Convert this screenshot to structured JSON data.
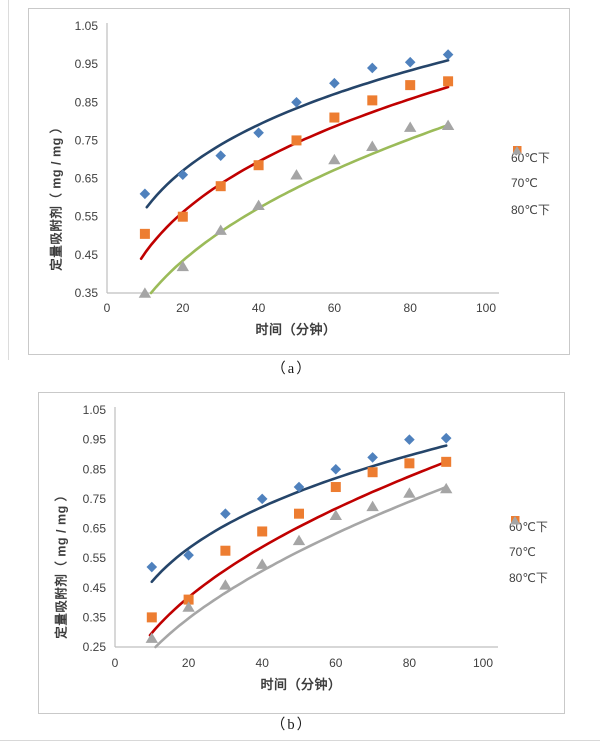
{
  "captions": {
    "a": "（a）",
    "b": "（b）"
  },
  "chart_data": [
    {
      "id": "a",
      "type": "scatter",
      "title": "",
      "xlabel": "时间（分钟）",
      "ylabel": "定量吸附剂（ mg / mg ）",
      "xlim": [
        0,
        100
      ],
      "ylim": [
        0.35,
        1.05
      ],
      "xticks": [
        0,
        20,
        40,
        60,
        80,
        100
      ],
      "yticks": [
        1.05,
        0.95,
        0.85,
        0.75,
        0.65,
        0.55,
        0.45,
        0.35
      ],
      "grid": false,
      "legend_position": "right",
      "x": [
        10,
        20,
        30,
        40,
        50,
        60,
        70,
        80,
        90
      ],
      "series": [
        {
          "name": "60℃下",
          "marker": "diamond",
          "marker_color": "#4f81bd",
          "line_color": "#25456a",
          "values": [
            0.61,
            0.66,
            0.71,
            0.77,
            0.85,
            0.9,
            0.94,
            0.955,
            0.975
          ],
          "trend": {
            "type": "power",
            "x1": 10.5,
            "y1": 0.575,
            "x2": 90,
            "y2": 0.96
          }
        },
        {
          "name": "70℃",
          "marker": "square",
          "marker_color": "#ed7d31",
          "line_color": "#c00000",
          "values": [
            0.505,
            0.55,
            0.63,
            0.685,
            0.75,
            0.81,
            0.855,
            0.895,
            0.905
          ],
          "trend": {
            "type": "power",
            "x1": 9,
            "y1": 0.44,
            "x2": 90,
            "y2": 0.89
          }
        },
        {
          "name": "80℃下",
          "marker": "triangle",
          "marker_color": "#a5a5a5",
          "line_color": "#9bbb59",
          "values": [
            0.35,
            0.42,
            0.515,
            0.58,
            0.66,
            0.7,
            0.735,
            0.785,
            0.79
          ],
          "trend": {
            "type": "power",
            "x1": 11.6,
            "y1": 0.35,
            "x2": 90,
            "y2": 0.79
          }
        }
      ]
    },
    {
      "id": "b",
      "type": "scatter",
      "title": "",
      "xlabel": "时间（分钟）",
      "ylabel": "定量吸附剂（ mg / mg ）",
      "xlim": [
        0,
        100
      ],
      "ylim": [
        0.25,
        1.05
      ],
      "xticks": [
        0,
        20,
        40,
        60,
        80,
        100
      ],
      "yticks": [
        1.05,
        0.95,
        0.85,
        0.75,
        0.65,
        0.55,
        0.45,
        0.35,
        0.25
      ],
      "grid": false,
      "legend_position": "right",
      "x": [
        10,
        20,
        30,
        40,
        50,
        60,
        70,
        80,
        90
      ],
      "series": [
        {
          "name": "60℃下",
          "marker": "diamond",
          "marker_color": "#4f81bd",
          "line_color": "#25456a",
          "values": [
            0.52,
            0.56,
            0.7,
            0.75,
            0.79,
            0.85,
            0.89,
            0.95,
            0.955
          ],
          "trend": {
            "type": "power",
            "x1": 10,
            "y1": 0.47,
            "x2": 90,
            "y2": 0.93
          }
        },
        {
          "name": "70℃",
          "marker": "square",
          "marker_color": "#ed7d31",
          "line_color": "#c00000",
          "values": [
            0.35,
            0.41,
            0.575,
            0.64,
            0.7,
            0.79,
            0.84,
            0.87,
            0.875
          ],
          "trend": {
            "type": "power",
            "x1": 9.5,
            "y1": 0.29,
            "x2": 90,
            "y2": 0.875
          }
        },
        {
          "name": "80℃下",
          "marker": "triangle",
          "marker_color": "#a5a5a5",
          "line_color": "#a6a6a6",
          "values": [
            0.28,
            0.385,
            0.46,
            0.53,
            0.61,
            0.695,
            0.725,
            0.77,
            0.785
          ],
          "trend": {
            "type": "power",
            "x1": 11,
            "y1": 0.25,
            "x2": 90,
            "y2": 0.79
          }
        }
      ]
    }
  ]
}
